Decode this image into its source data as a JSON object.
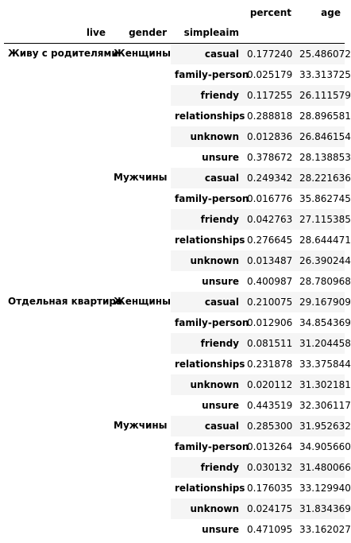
{
  "columns": {
    "value_headers": [
      "percent",
      "age"
    ],
    "index_names": [
      "live",
      "gender",
      "simpleaim"
    ]
  },
  "rows": [
    {
      "live": "Живу с родителями",
      "gender": "Женщины",
      "simpleaim": "casual",
      "percent": "0.177240",
      "age": "25.486072"
    },
    {
      "live": "",
      "gender": "",
      "simpleaim": "family-person",
      "percent": "0.025179",
      "age": "33.313725"
    },
    {
      "live": "",
      "gender": "",
      "simpleaim": "friendy",
      "percent": "0.117255",
      "age": "26.111579"
    },
    {
      "live": "",
      "gender": "",
      "simpleaim": "relationships",
      "percent": "0.288818",
      "age": "28.896581"
    },
    {
      "live": "",
      "gender": "",
      "simpleaim": "unknown",
      "percent": "0.012836",
      "age": "26.846154"
    },
    {
      "live": "",
      "gender": "",
      "simpleaim": "unsure",
      "percent": "0.378672",
      "age": "28.138853"
    },
    {
      "live": "",
      "gender": "Мужчины",
      "simpleaim": "casual",
      "percent": "0.249342",
      "age": "28.221636"
    },
    {
      "live": "",
      "gender": "",
      "simpleaim": "family-person",
      "percent": "0.016776",
      "age": "35.862745"
    },
    {
      "live": "",
      "gender": "",
      "simpleaim": "friendy",
      "percent": "0.042763",
      "age": "27.115385"
    },
    {
      "live": "",
      "gender": "",
      "simpleaim": "relationships",
      "percent": "0.276645",
      "age": "28.644471"
    },
    {
      "live": "",
      "gender": "",
      "simpleaim": "unknown",
      "percent": "0.013487",
      "age": "26.390244"
    },
    {
      "live": "",
      "gender": "",
      "simpleaim": "unsure",
      "percent": "0.400987",
      "age": "28.780968"
    },
    {
      "live": "Отдельная квартира",
      "gender": "Женщины",
      "simpleaim": "casual",
      "percent": "0.210075",
      "age": "29.167909"
    },
    {
      "live": "",
      "gender": "",
      "simpleaim": "family-person",
      "percent": "0.012906",
      "age": "34.854369"
    },
    {
      "live": "",
      "gender": "",
      "simpleaim": "friendy",
      "percent": "0.081511",
      "age": "31.204458"
    },
    {
      "live": "",
      "gender": "",
      "simpleaim": "relationships",
      "percent": "0.231878",
      "age": "33.375844"
    },
    {
      "live": "",
      "gender": "",
      "simpleaim": "unknown",
      "percent": "0.020112",
      "age": "31.302181"
    },
    {
      "live": "",
      "gender": "",
      "simpleaim": "unsure",
      "percent": "0.443519",
      "age": "32.306117"
    },
    {
      "live": "",
      "gender": "Мужчины",
      "simpleaim": "casual",
      "percent": "0.285300",
      "age": "31.952632"
    },
    {
      "live": "",
      "gender": "",
      "simpleaim": "family-person",
      "percent": "0.013264",
      "age": "34.905660"
    },
    {
      "live": "",
      "gender": "",
      "simpleaim": "friendy",
      "percent": "0.030132",
      "age": "31.480066"
    },
    {
      "live": "",
      "gender": "",
      "simpleaim": "relationships",
      "percent": "0.176035",
      "age": "33.129940"
    },
    {
      "live": "",
      "gender": "",
      "simpleaim": "unknown",
      "percent": "0.024175",
      "age": "31.834369"
    },
    {
      "live": "",
      "gender": "",
      "simpleaim": "unsure",
      "percent": "0.471095",
      "age": "33.162027"
    }
  ]
}
